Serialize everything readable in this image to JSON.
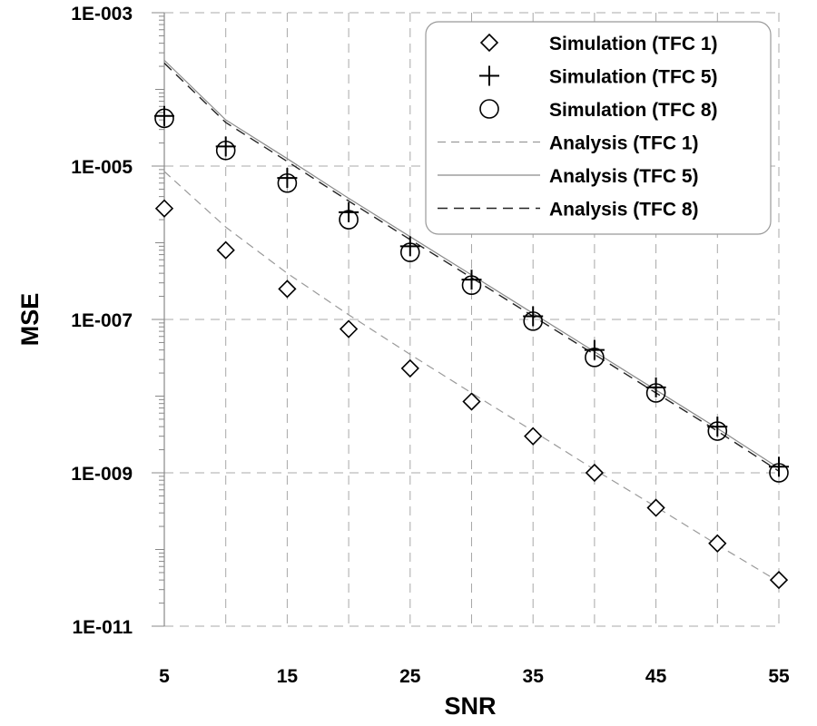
{
  "chart_data": {
    "type": "scatter",
    "title": "",
    "xlabel": "SNR",
    "ylabel": "MSE",
    "xlim": [
      5,
      55
    ],
    "ylim": [
      1e-11,
      0.001
    ],
    "yscale": "log",
    "grid": true,
    "legend_position": "top-right",
    "x_ticks": [
      "5",
      "15",
      "25",
      "35",
      "45",
      "55"
    ],
    "y_ticks": [
      "1E-003",
      "1E-005",
      "1E-007",
      "1E-009",
      "1E-011"
    ],
    "series": [
      {
        "name": "Simulation (TFC 1)",
        "kind": "markers",
        "marker": "diamond",
        "x": [
          5,
          10,
          15,
          20,
          25,
          30,
          35,
          40,
          45,
          50,
          55
        ],
        "values": [
          2.8e-06,
          8e-07,
          2.5e-07,
          7.5e-08,
          2.3e-08,
          8.5e-09,
          3e-09,
          1e-09,
          3.5e-10,
          1.2e-10,
          4e-11
        ]
      },
      {
        "name": "Simulation (TFC 5)",
        "kind": "markers",
        "marker": "plus",
        "x": [
          5,
          10,
          15,
          20,
          25,
          30,
          35,
          40,
          45,
          50,
          55
        ],
        "values": [
          4.5e-05,
          1.8e-05,
          7e-06,
          2.5e-06,
          9e-07,
          3.3e-07,
          1.1e-07,
          4e-08,
          1.3e-08,
          4e-09,
          1.2e-09
        ]
      },
      {
        "name": "Simulation (TFC 8)",
        "kind": "markers",
        "marker": "circle",
        "x": [
          5,
          10,
          15,
          20,
          25,
          30,
          35,
          40,
          45,
          50,
          55
        ],
        "values": [
          4.2e-05,
          1.6e-05,
          6e-06,
          2e-06,
          7.5e-07,
          2.8e-07,
          9.5e-08,
          3.2e-08,
          1.1e-08,
          3.5e-09,
          1e-09
        ]
      },
      {
        "name": "Analysis (TFC 1)",
        "kind": "line",
        "line_style": "dashed-light",
        "x": [
          5,
          10,
          15,
          20,
          25,
          30,
          35,
          40,
          45,
          50,
          55
        ],
        "values": [
          8.5e-06,
          1.6e-06,
          4e-07,
          1.15e-07,
          3.5e-08,
          1.1e-08,
          3.5e-09,
          1.1e-09,
          3.6e-10,
          1.15e-10,
          3.8e-11
        ]
      },
      {
        "name": "Analysis (TFC 5)",
        "kind": "line",
        "line_style": "solid-light",
        "x": [
          5,
          10,
          15,
          20,
          25,
          30,
          35,
          40,
          45,
          50,
          55
        ],
        "values": [
          0.00024,
          4e-05,
          1.25e-05,
          3.8e-06,
          1.2e-06,
          3.8e-07,
          1.2e-07,
          3.8e-08,
          1.2e-08,
          3.8e-09,
          1.15e-09
        ]
      },
      {
        "name": "Analysis (TFC 8)",
        "kind": "line",
        "line_style": "dashed-dark",
        "x": [
          5,
          10,
          15,
          20,
          25,
          30,
          35,
          40,
          45,
          50,
          55
        ],
        "values": [
          0.00022,
          3.7e-05,
          1.15e-05,
          3.5e-06,
          1.1e-06,
          3.5e-07,
          1.1e-07,
          3.5e-08,
          1.1e-08,
          3.5e-09,
          1.05e-09
        ]
      }
    ]
  }
}
